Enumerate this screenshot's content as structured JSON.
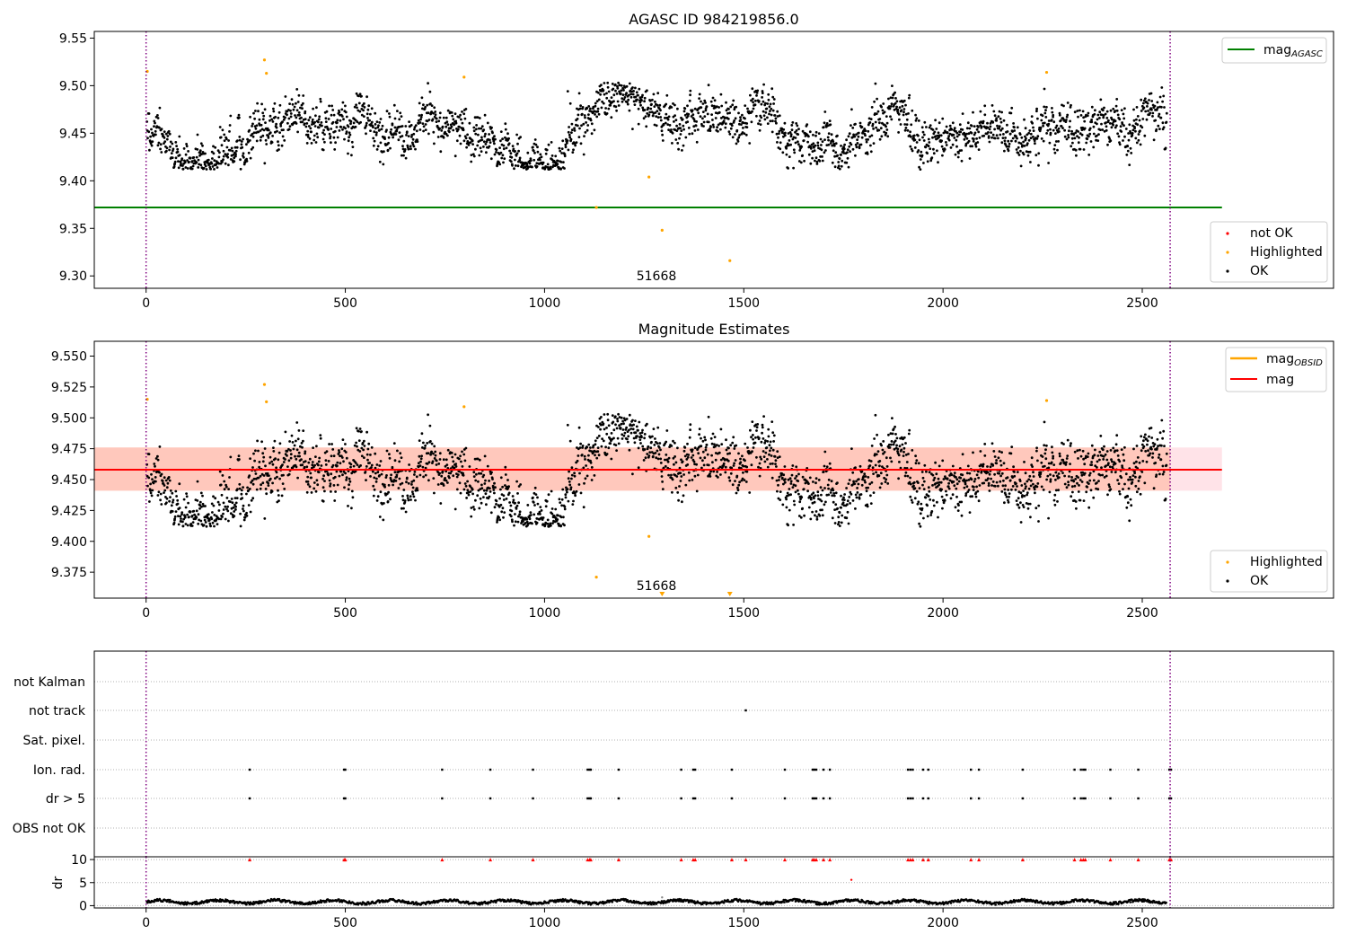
{
  "colors": {
    "ok": "#000000",
    "highlighted": "#ffa500",
    "not_ok": "#ff0000",
    "mag_agasc": "#008000",
    "mag": "#ff0000",
    "mag_obsid": "#ffa500",
    "band_outer": "#ffc0cb",
    "band_inner": "#ffa07a",
    "vline": "#800080",
    "grid": "#b0b0b0"
  },
  "chart_data": [
    {
      "id": "panel1",
      "type": "scatter",
      "title": "AGASC ID 984219856.0",
      "xlim": [
        -130,
        2980
      ],
      "ylim": [
        9.287,
        9.557
      ],
      "xticks": [
        "0",
        "500",
        "1000",
        "1500",
        "2000",
        "2500"
      ],
      "xtick_values": [
        0,
        500,
        1000,
        1500,
        2000,
        2500
      ],
      "yticks": [
        "9.30",
        "9.35",
        "9.40",
        "9.45",
        "9.50",
        "9.55"
      ],
      "ytick_values": [
        9.3,
        9.35,
        9.4,
        9.45,
        9.5,
        9.55
      ],
      "vlines": [
        0,
        2570
      ],
      "hline": {
        "y": 9.372,
        "x_end": 2700
      },
      "annotation": {
        "text": "51668",
        "x": 1280,
        "y": 9.297
      },
      "highlighted_points": [
        [
          3,
          9.515
        ],
        [
          297,
          9.527
        ],
        [
          302,
          9.513
        ],
        [
          798,
          9.509
        ],
        [
          1262,
          9.404
        ],
        [
          1295,
          9.348
        ],
        [
          1465,
          9.316
        ],
        [
          2260,
          9.514
        ],
        [
          1130,
          9.372
        ]
      ],
      "legend_lines": [
        {
          "label": "mag",
          "sub": "AGASC"
        }
      ],
      "legend_points": [
        "not OK",
        "Highlighted",
        "OK"
      ]
    },
    {
      "id": "panel2",
      "type": "scatter",
      "title": "Magnitude Estimates",
      "xlim": [
        -130,
        2980
      ],
      "ylim": [
        9.354,
        9.562
      ],
      "xticks": [
        "0",
        "500",
        "1000",
        "1500",
        "2000",
        "2500"
      ],
      "xtick_values": [
        0,
        500,
        1000,
        1500,
        2000,
        2500
      ],
      "yticks": [
        "9.375",
        "9.400",
        "9.425",
        "9.450",
        "9.475",
        "9.500",
        "9.525",
        "9.550"
      ],
      "ytick_values": [
        9.375,
        9.4,
        9.425,
        9.45,
        9.475,
        9.5,
        9.525,
        9.55
      ],
      "vlines": [
        0,
        2570
      ],
      "hline": {
        "y": 9.458,
        "x_end": 2700
      },
      "band": {
        "low": 9.441,
        "high": 9.476,
        "x_end": 2700
      },
      "inner_band_x_end": 2570,
      "annotation": {
        "text": "51668",
        "x": 1280,
        "y": 9.361
      },
      "highlighted_points": [
        [
          3,
          9.515
        ],
        [
          297,
          9.527
        ],
        [
          302,
          9.513
        ],
        [
          798,
          9.509
        ],
        [
          1262,
          9.404
        ],
        [
          1130,
          9.371
        ],
        [
          2260,
          9.514
        ]
      ],
      "offscale_markers": [
        1295,
        1465
      ],
      "legend_lines": [
        {
          "label": "mag",
          "sub": "OBSID"
        },
        {
          "label": "mag",
          "sub": ""
        }
      ],
      "legend_points": [
        "Highlighted",
        "OK"
      ]
    },
    {
      "id": "panel3",
      "type": "scatter",
      "xlim": [
        -130,
        2980
      ],
      "categories": [
        "not Kalman",
        "not track",
        "Sat. pixel.",
        "Ion. rad.",
        "dr > 5",
        "OBS not OK"
      ],
      "vlines": [
        0,
        2570
      ],
      "not_track_x": [
        1505
      ],
      "ion_rad_x": [
        260,
        497,
        500,
        743,
        864,
        971,
        1108,
        1113,
        1116,
        1186,
        1343,
        1373,
        1378,
        1470,
        1603,
        1673,
        1677,
        1682,
        1700,
        1716,
        1912,
        1918,
        1924,
        1950,
        1963,
        2070,
        2090,
        2200,
        2330,
        2346,
        2352,
        2357,
        2420,
        2490,
        2568,
        2572
      ]
    },
    {
      "id": "panel4",
      "type": "scatter",
      "xlim": [
        -130,
        2980
      ],
      "ylim": [
        -0.5,
        10.6
      ],
      "ylabel": "dr",
      "yticks": [
        "0",
        "5",
        "10"
      ],
      "ytick_values": [
        0,
        5,
        10
      ],
      "xticks": [
        "0",
        "500",
        "1000",
        "1500",
        "2000",
        "2500"
      ],
      "xtick_values": [
        0,
        500,
        1000,
        1500,
        2000,
        2500
      ],
      "vlines": [
        0,
        2570
      ],
      "red_triangle_x": [
        260,
        497,
        500,
        743,
        864,
        971,
        1108,
        1113,
        1116,
        1186,
        1343,
        1373,
        1378,
        1470,
        1505,
        1603,
        1673,
        1677,
        1682,
        1700,
        1716,
        1912,
        1918,
        1924,
        1950,
        1963,
        2070,
        2090,
        2200,
        2330,
        2346,
        2352,
        2357,
        2420,
        2490,
        2568,
        2572
      ],
      "red_points": [
        [
          1770,
          5.6
        ]
      ]
    }
  ]
}
